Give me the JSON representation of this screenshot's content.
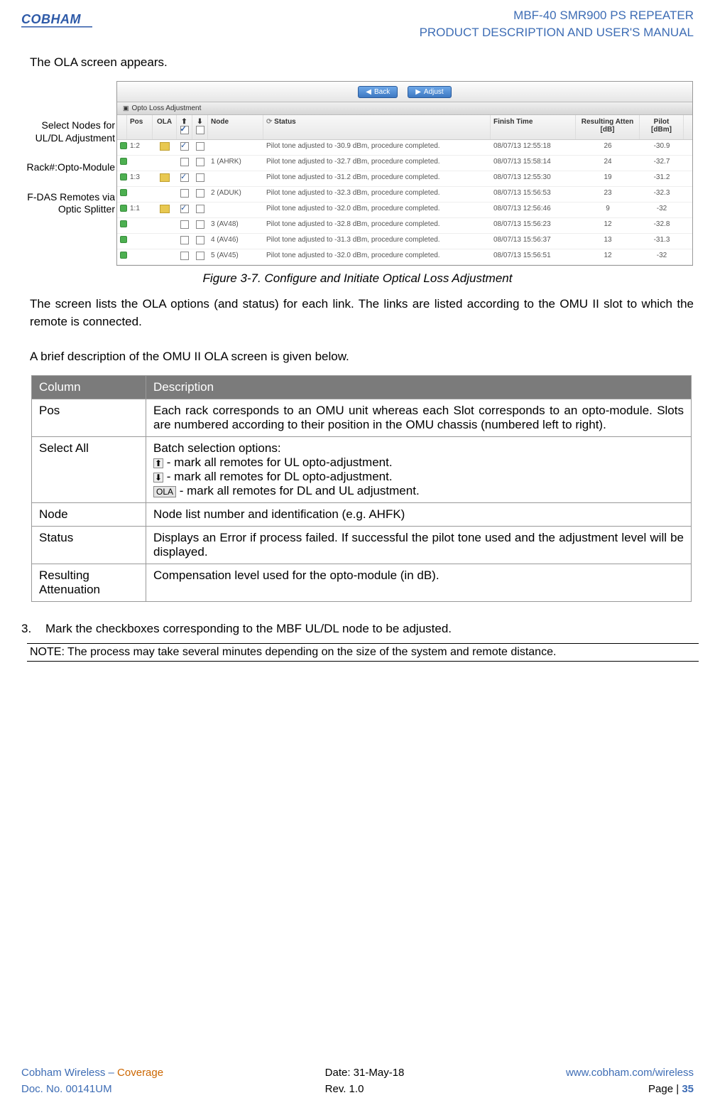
{
  "header": {
    "logo_text": "COBHAM",
    "title1": "MBF-40 SMR900 PS REPEATER",
    "title2": "PRODUCT DESCRIPTION AND USER'S MANUAL"
  },
  "intro_text": "The OLA screen appears.",
  "annotations": {
    "a1": "Select Nodes  for UL/DL Adjustment",
    "a2": "Rack#:Opto-Module",
    "a3": "F-DAS Remotes via Optic Splitter"
  },
  "screenshot": {
    "back_label": "Back",
    "adjust_label": "Adjust",
    "section_title": "Opto Loss Adjustment",
    "columns": {
      "pos": "Pos",
      "ola": "OLA",
      "up": "⬆",
      "down": "⬇",
      "node": "Node",
      "status": "Status",
      "finish": "Finish Time",
      "atten": "Resulting Atten [dB]",
      "pilot": "Pilot [dBm]"
    },
    "rows": [
      {
        "pos": "1:2",
        "ck1": true,
        "ck2": false,
        "node": "",
        "status": "Pilot tone adjusted to -30.9 dBm, procedure completed.",
        "time": "08/07/13 12:55:18",
        "att": "26",
        "pilot": "-30.9"
      },
      {
        "pos": "",
        "ck1": false,
        "ck2": false,
        "node": "1 (AHRK)",
        "status": "Pilot tone adjusted to -32.7 dBm, procedure completed.",
        "time": "08/07/13 15:58:14",
        "att": "24",
        "pilot": "-32.7"
      },
      {
        "pos": "1:3",
        "ck1": true,
        "ck2": false,
        "node": "",
        "status": "Pilot tone adjusted to -31.2 dBm, procedure completed.",
        "time": "08/07/13 12:55:30",
        "att": "19",
        "pilot": "-31.2"
      },
      {
        "pos": "",
        "ck1": false,
        "ck2": false,
        "node": "2 (ADUK)",
        "status": "Pilot tone adjusted to -32.3 dBm, procedure completed.",
        "time": "08/07/13 15:56:53",
        "att": "23",
        "pilot": "-32.3"
      },
      {
        "pos": "1:1",
        "ck1": true,
        "ck2": false,
        "node": "",
        "status": "Pilot tone adjusted to -32.0 dBm, procedure completed.",
        "time": "08/07/13 12:56:46",
        "att": "9",
        "pilot": "-32"
      },
      {
        "pos": "",
        "ck1": false,
        "ck2": false,
        "node": "3 (AV48)",
        "status": "Pilot tone adjusted to -32.8 dBm, procedure completed.",
        "time": "08/07/13 15:56:23",
        "att": "12",
        "pilot": "-32.8"
      },
      {
        "pos": "",
        "ck1": false,
        "ck2": false,
        "node": "4 (AV46)",
        "status": "Pilot tone adjusted to -31.3 dBm, procedure completed.",
        "time": "08/07/13 15:56:37",
        "att": "13",
        "pilot": "-31.3"
      },
      {
        "pos": "",
        "ck1": false,
        "ck2": false,
        "node": "5 (AV45)",
        "status": "Pilot tone adjusted to -32.0 dBm, procedure completed.",
        "time": "08/07/13 15:56:51",
        "att": "12",
        "pilot": "-32"
      }
    ]
  },
  "figure_caption": "Figure 3-7.  Configure and Initiate Optical Loss Adjustment",
  "para1": "The screen lists the OLA options (and status) for each link. The links are listed according to the OMU II slot to which the remote is connected.",
  "para2": "A brief description of the OMU II OLA screen is given below.",
  "table": {
    "header_col": "Column",
    "header_desc": "Description",
    "rows": [
      {
        "col": "Pos",
        "desc": "Each rack corresponds to an OMU unit whereas each Slot corresponds to an opto-module. Slots are numbered according to their position in the OMU chassis (numbered left to right)."
      },
      {
        "col": "Select All",
        "desc_pre": "Batch selection options:",
        "opt1": " - mark all remotes for UL opto-adjustment.",
        "opt2": " - mark all remotes for DL opto-adjustment.",
        "opt3": " - mark all remotes for DL and UL adjustment."
      },
      {
        "col": "Node",
        "desc": "Node list number and identification (e.g. AHFK)"
      },
      {
        "col": "Status",
        "desc": "Displays an Error if process failed. If successful the pilot tone used and the adjustment level will be displayed."
      },
      {
        "col": "Resulting Attenuation",
        "desc": "Compensation level used for the opto-module (in dB)."
      }
    ]
  },
  "step3_num": "3.",
  "step3": "Mark the checkboxes corresponding to the MBF UL/DL node to be adjusted.",
  "note": "NOTE: The process may take several minutes depending on the size of the system and remote distance.",
  "footer": {
    "l1a": "Cobham Wireless – ",
    "l1b": "Coverage",
    "l2": "Doc. No. 00141UM",
    "c1": "Date: 31-May-18",
    "c2": "Rev. 1.0",
    "r1": "www.cobham.com/wireless",
    "r2_pre": "Page | ",
    "r2_num": "35"
  }
}
